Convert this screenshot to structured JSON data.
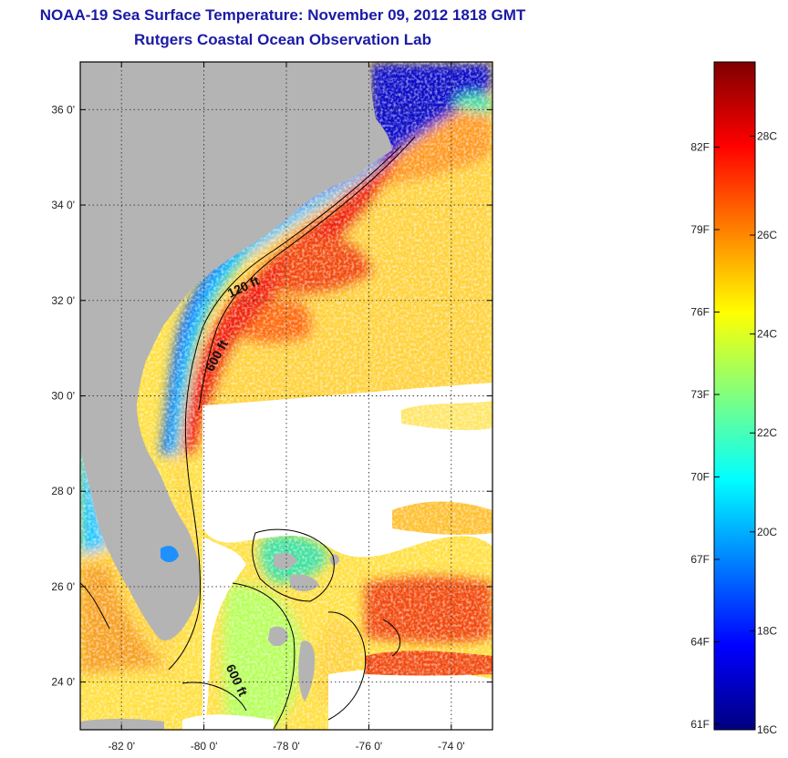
{
  "header": {
    "title": "NOAA-19 Sea Surface Temperature:  November 09, 2012 1818 GMT",
    "subtitle": "Rutgers Coastal Ocean Observation Lab"
  },
  "map": {
    "lon_range": [
      -83,
      -73
    ],
    "lat_range": [
      23,
      37
    ],
    "lon_ticks": [
      {
        "value": -82,
        "label": "-82 0'"
      },
      {
        "value": -80,
        "label": "-80 0'"
      },
      {
        "value": -78,
        "label": "-78 0'"
      },
      {
        "value": -76,
        "label": "-76 0'"
      },
      {
        "value": -74,
        "label": "-74 0'"
      }
    ],
    "lat_ticks": [
      {
        "value": 36,
        "label": "36 0'"
      },
      {
        "value": 34,
        "label": "34 0'"
      },
      {
        "value": 32,
        "label": "32 0'"
      },
      {
        "value": 30,
        "label": "30 0'"
      },
      {
        "value": 28,
        "label": "28 0'"
      },
      {
        "value": 26,
        "label": "26 0'"
      },
      {
        "value": 24,
        "label": "24 0'"
      }
    ],
    "contour_labels": [
      {
        "text": "120 ft",
        "lon": -79.0,
        "lat": 32.2
      },
      {
        "text": "600 ft",
        "lon": -79.6,
        "lat": 30.8
      },
      {
        "text": "600 ft",
        "lon": -79.3,
        "lat": 24.0
      }
    ],
    "colors": {
      "land": "#b4b4b4",
      "cloud": "#ffffff",
      "grid": "#333333"
    }
  },
  "colorbar": {
    "range_c": [
      16,
      29.5
    ],
    "celsius_ticks": [
      {
        "value": 28,
        "label": "28C"
      },
      {
        "value": 26,
        "label": "26C"
      },
      {
        "value": 24,
        "label": "24C"
      },
      {
        "value": 22,
        "label": "22C"
      },
      {
        "value": 20,
        "label": "20C"
      },
      {
        "value": 18,
        "label": "18C"
      },
      {
        "value": 16,
        "label": "16C"
      }
    ],
    "fahrenheit_ticks": [
      {
        "value": 82,
        "label": "82F"
      },
      {
        "value": 79,
        "label": "79F"
      },
      {
        "value": 76,
        "label": "76F"
      },
      {
        "value": 73,
        "label": "73F"
      },
      {
        "value": 70,
        "label": "70F"
      },
      {
        "value": 67,
        "label": "67F"
      },
      {
        "value": 64,
        "label": "64F"
      },
      {
        "value": 61,
        "label": "61F"
      }
    ],
    "colormap": [
      "#00007f",
      "#0000ff",
      "#007fff",
      "#00ffff",
      "#7fff7f",
      "#ffff00",
      "#ff7f00",
      "#ff0000",
      "#7f0000"
    ]
  }
}
